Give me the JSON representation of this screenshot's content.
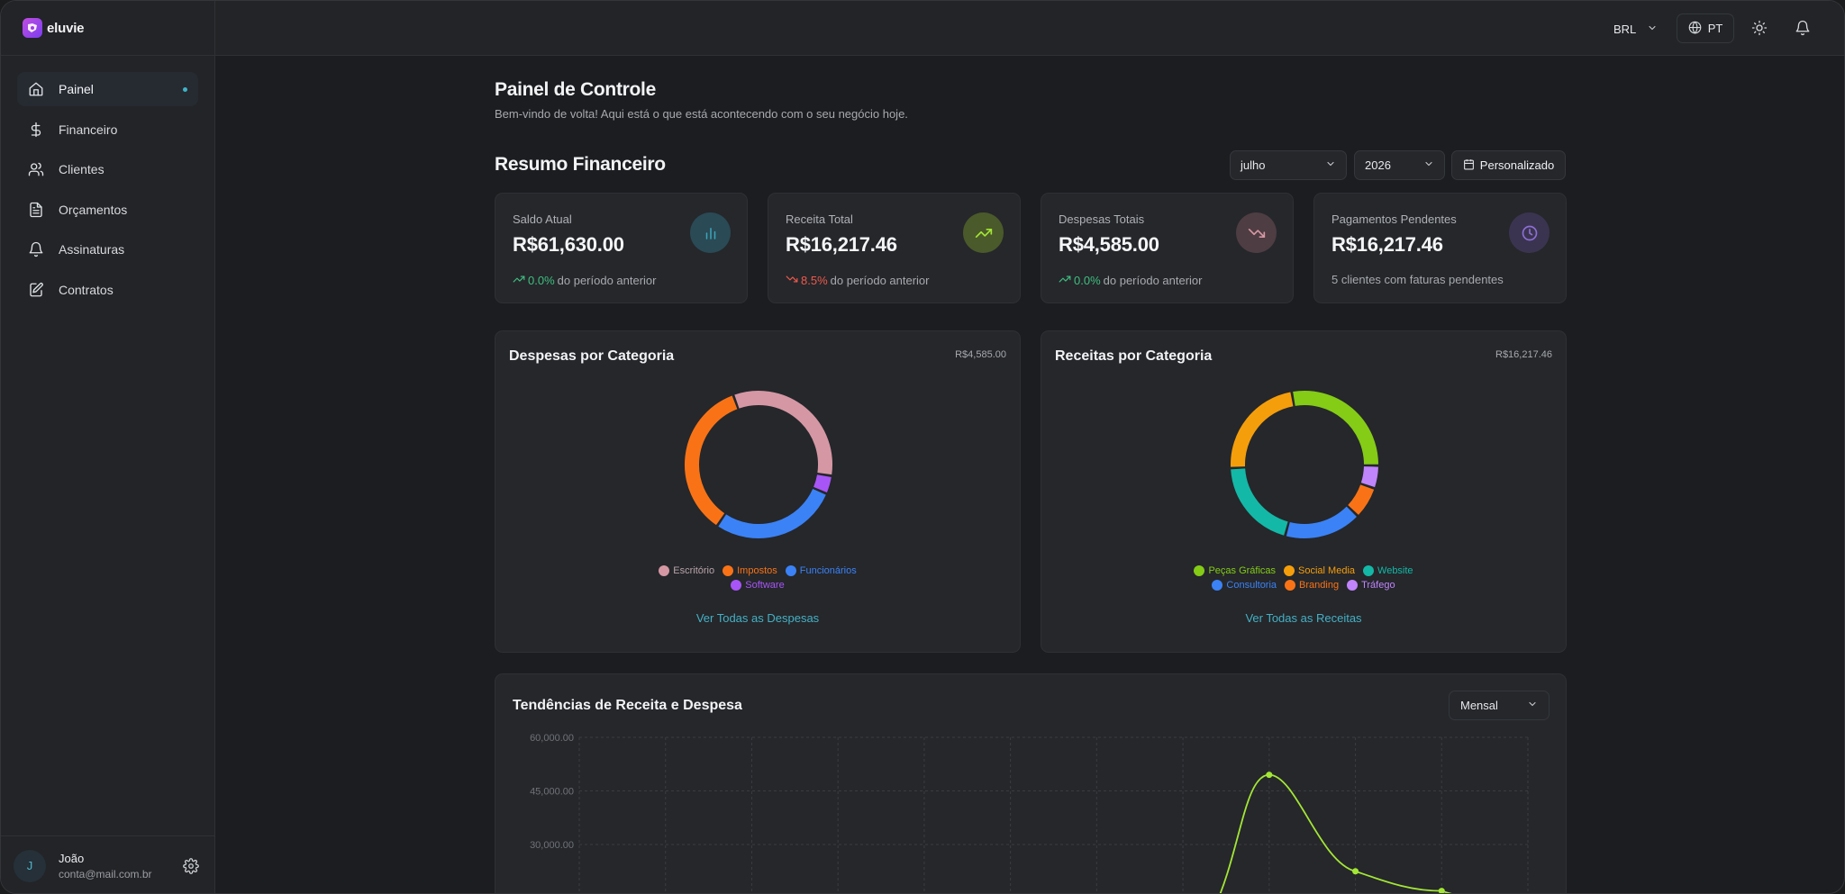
{
  "app": {
    "logo_text": "eluvie"
  },
  "sidebar": {
    "items": [
      {
        "label": "Painel",
        "icon": "home-icon",
        "active": true
      },
      {
        "label": "Financeiro",
        "icon": "dollar-icon"
      },
      {
        "label": "Clientes",
        "icon": "users-icon"
      },
      {
        "label": "Orçamentos",
        "icon": "document-icon"
      },
      {
        "label": "Assinaturas",
        "icon": "bell-icon"
      },
      {
        "label": "Contratos",
        "icon": "edit-document-icon"
      }
    ],
    "user": {
      "initial": "J",
      "name": "João",
      "email": "conta@mail.com.br"
    }
  },
  "topbar": {
    "currency": "BRL",
    "language": "PT"
  },
  "page": {
    "title": "Painel de Controle",
    "subtitle": "Bem-vindo de volta! Aqui está o que está acontecendo com o seu negócio hoje."
  },
  "summary": {
    "title": "Resumo Financeiro",
    "month": "julho",
    "year": "2026",
    "custom_label": "Personalizado"
  },
  "kpis": [
    {
      "label": "Saldo Atual",
      "value": "R$61,630.00",
      "change": "0.0%",
      "trend": "up",
      "suffix": "do período anterior",
      "color": "#3aa6b9"
    },
    {
      "label": "Receita Total",
      "value": "R$16,217.46",
      "change": "8.5%",
      "trend": "down",
      "suffix": "do período anterior",
      "color": "#84cc16"
    },
    {
      "label": "Despesas Totais",
      "value": "R$4,585.00",
      "change": "0.0%",
      "trend": "up",
      "suffix": "do período anterior",
      "color": "#d597a4"
    },
    {
      "label": "Pagamentos Pendentes",
      "value": "R$16,217.46",
      "change": "",
      "trend": "none",
      "suffix": "5 clientes com faturas pendentes",
      "color": "#8b5cf6"
    }
  ],
  "expenses_card": {
    "title": "Despesas por Categoria",
    "total": "R$4,585.00",
    "link": "Ver Todas as Despesas",
    "legend": [
      {
        "label": "Escritório",
        "color": "#d597a4"
      },
      {
        "label": "Impostos",
        "color": "#f97316"
      },
      {
        "label": "Funcionários",
        "color": "#3b82f6"
      },
      {
        "label": "Software",
        "color": "#a855f7"
      }
    ]
  },
  "revenue_card": {
    "title": "Receitas por Categoria",
    "total": "R$16,217.46",
    "link": "Ver Todas as Receitas",
    "legend": [
      {
        "label": "Peças Gráficas",
        "color": "#84cc16"
      },
      {
        "label": "Social Media",
        "color": "#f59e0b"
      },
      {
        "label": "Website",
        "color": "#14b8a6"
      },
      {
        "label": "Consultoria",
        "color": "#3b82f6"
      },
      {
        "label": "Branding",
        "color": "#f97316"
      },
      {
        "label": "Tráfego",
        "color": "#c084fc"
      }
    ]
  },
  "chart_data": [
    {
      "type": "pie",
      "title": "Despesas por Categoria",
      "categories": [
        "Escritório",
        "Software",
        "Funcionários",
        "Impostos"
      ],
      "values": [
        33,
        4,
        28,
        35
      ]
    },
    {
      "type": "pie",
      "title": "Receitas por Categoria",
      "categories": [
        "Peças Gráficas",
        "Tráfego",
        "Branding",
        "Consultoria",
        "Website",
        "Social Media"
      ],
      "values": [
        28,
        5,
        7,
        17,
        20,
        23
      ]
    },
    {
      "type": "line",
      "title": "Tendências de Receita e Despesa",
      "period": "Mensal",
      "y_ticks": [
        "60,000.00",
        "45,000.00",
        "30,000.00"
      ],
      "ylim": [
        0,
        60000
      ],
      "series": [
        {
          "color": "#a3e635",
          "points": [
            [
              8,
              49500
            ],
            [
              9,
              22500
            ],
            [
              10,
              17000
            ],
            [
              11,
              15500
            ]
          ]
        }
      ]
    }
  ]
}
